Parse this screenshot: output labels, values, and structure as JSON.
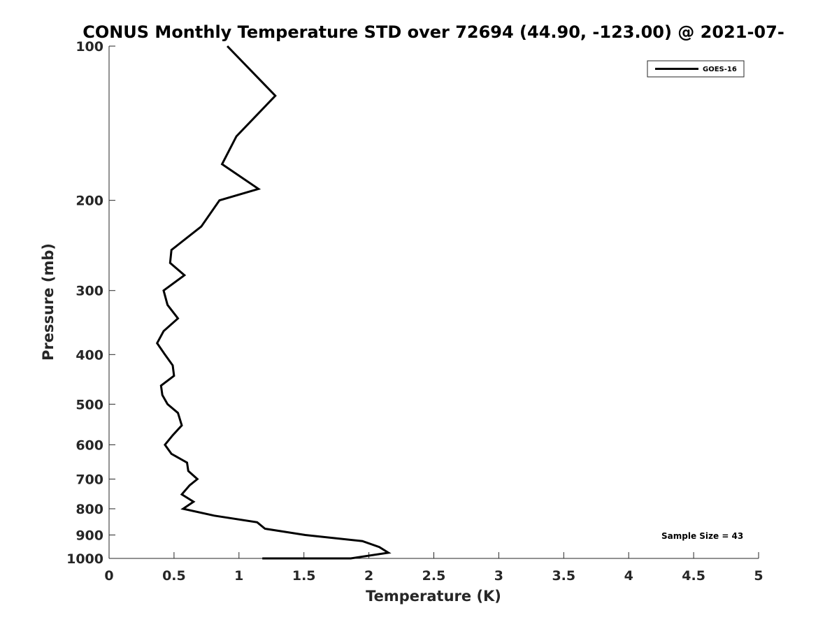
{
  "chart_data": {
    "type": "line",
    "title": "CONUS Monthly Temperature STD over 72694 (44.90, -123.00) @ 2021-07-",
    "xlabel": "Temperature (K)",
    "ylabel": "Pressure (mb)",
    "xlim": [
      0,
      5
    ],
    "ylim": [
      100,
      1000
    ],
    "y_scale": "log",
    "y_reversed": true,
    "xticks": [
      0,
      0.5,
      1,
      1.5,
      2,
      2.5,
      3,
      3.5,
      4,
      4.5,
      5
    ],
    "xtick_labels": [
      "0",
      "0.5",
      "1",
      "1.5",
      "2",
      "2.5",
      "3",
      "3.5",
      "4",
      "4.5",
      "5"
    ],
    "yticks": [
      100,
      200,
      300,
      400,
      500,
      600,
      700,
      800,
      900,
      1000
    ],
    "ytick_labels": [
      "100",
      "200",
      "300",
      "400",
      "500",
      "600",
      "700",
      "800",
      "900",
      "1000"
    ],
    "grid": false,
    "legend_position": "top-right",
    "annotation": "Sample Size = 43",
    "series": [
      {
        "name": "GOES-16",
        "color": "#000000",
        "x": [
          0.91,
          1.28,
          0.98,
          0.87,
          1.15,
          0.85,
          0.71,
          0.48,
          0.47,
          0.58,
          0.42,
          0.45,
          0.53,
          0.42,
          0.37,
          0.43,
          0.49,
          0.5,
          0.4,
          0.41,
          0.45,
          0.53,
          0.56,
          0.49,
          0.43,
          0.48,
          0.6,
          0.61,
          0.68,
          0.62,
          0.56,
          0.65,
          0.57,
          0.81,
          1.14,
          1.2,
          1.51,
          1.95,
          2.08,
          2.15,
          1.86,
          1.84,
          1.73,
          1.18
        ],
        "y": [
          100,
          125,
          150,
          170,
          190,
          200,
          225,
          250,
          265,
          280,
          300,
          320,
          340,
          360,
          380,
          400,
          420,
          440,
          460,
          480,
          500,
          520,
          550,
          575,
          600,
          625,
          650,
          675,
          700,
          720,
          750,
          775,
          800,
          825,
          850,
          875,
          900,
          925,
          950,
          975,
          1000,
          1025,
          1050,
          1070
        ]
      }
    ]
  }
}
